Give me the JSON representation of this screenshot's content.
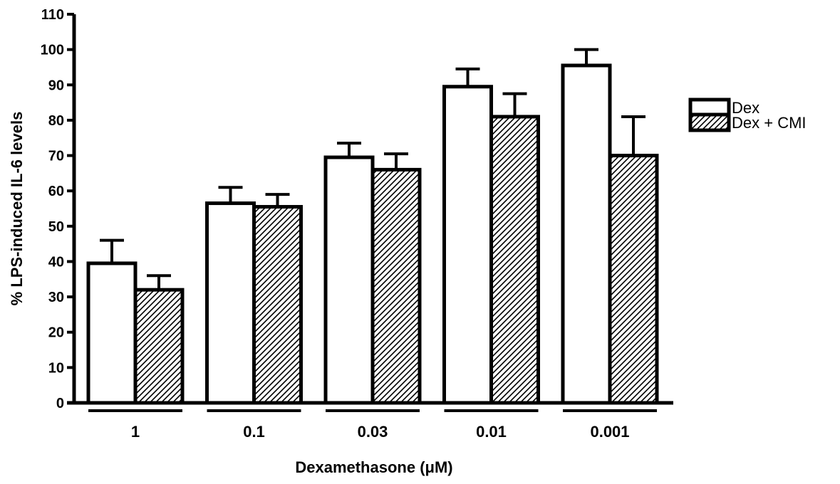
{
  "chart_data": {
    "type": "bar",
    "title": "",
    "xlabel": "Dexamethasone (μM)",
    "ylabel": "% LPS-induced IL-6 levels",
    "ylim": [
      0,
      110
    ],
    "yticks": [
      0,
      10,
      20,
      30,
      40,
      50,
      60,
      70,
      80,
      90,
      100,
      110
    ],
    "categories": [
      "1",
      "0.1",
      "0.03",
      "0.01",
      "0.001"
    ],
    "series": [
      {
        "name": "Dex",
        "fill": "white",
        "values": [
          39.5,
          56.5,
          69.5,
          89.5,
          95.5
        ],
        "error_upper": [
          6.5,
          4.5,
          4.0,
          5.0,
          4.5
        ]
      },
      {
        "name": "Dex + CMI",
        "fill": "diagonal-hatch",
        "values": [
          32.0,
          55.5,
          66.0,
          81.0,
          70.0
        ],
        "error_upper": [
          4.0,
          3.5,
          4.5,
          6.5,
          11.0
        ]
      }
    ],
    "error_bars": "upper-only",
    "legend_position": "top-right",
    "grid": false,
    "colors": {
      "stroke": "#000000",
      "background": "#ffffff"
    }
  }
}
